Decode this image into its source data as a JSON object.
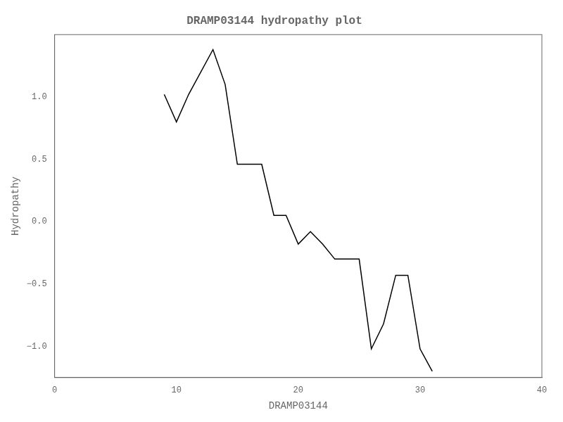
{
  "chart_data": {
    "type": "line",
    "title": "DRAMP03144 hydropathy plot",
    "xlabel": "DRAMP03144",
    "ylabel": "Hydropathy",
    "x": [
      9,
      10,
      11,
      13,
      14,
      15,
      17,
      18,
      19,
      20,
      21,
      22,
      23,
      25,
      26,
      27,
      28,
      29,
      30,
      31
    ],
    "values": [
      1.02,
      0.8,
      1.02,
      1.38,
      1.1,
      0.46,
      0.46,
      0.05,
      0.05,
      -0.18,
      -0.08,
      -0.18,
      -0.3,
      -0.3,
      -1.02,
      -0.82,
      -0.43,
      -0.43,
      -1.02,
      -1.2
    ],
    "color": "#000000",
    "xlim": [
      0,
      40
    ],
    "ylim": [
      -1.25,
      1.5
    ],
    "xticks": [
      0,
      10,
      20,
      30,
      40
    ],
    "yticks": [
      {
        "value": -1.0,
        "label": "−1.0"
      },
      {
        "value": -0.5,
        "label": "−0.5"
      },
      {
        "value": 0.0,
        "label": "0.0"
      },
      {
        "value": 0.5,
        "label": "0.5"
      },
      {
        "value": 1.0,
        "label": "1.0"
      }
    ],
    "grid": false
  }
}
